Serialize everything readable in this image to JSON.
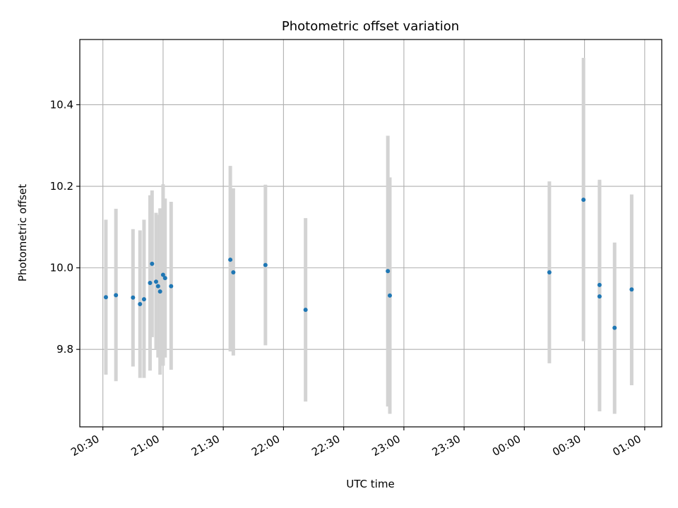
{
  "chart_data": {
    "type": "scatter",
    "title": "Photometric offset variation",
    "xlabel": "UTC time",
    "ylabel": "Photometric offset",
    "x_start": "20:30",
    "x_ticks": [
      "20:30",
      "21:00",
      "21:30",
      "22:00",
      "22:30",
      "23:00",
      "23:30",
      "00:00",
      "00:30",
      "01:00"
    ],
    "y_ticks": [
      9.8,
      10.0,
      10.2,
      10.4
    ],
    "xlim_minutes": [
      -11.5,
      278.5
    ],
    "ylim": [
      9.61,
      10.56
    ],
    "grid": true,
    "point_color": "#1f77b4",
    "errorbar_color": "#d3d3d3",
    "points": [
      {
        "x": 1.5,
        "y": 9.928,
        "ylo": 9.738,
        "yhi": 10.118
      },
      {
        "x": 6.5,
        "y": 9.933,
        "ylo": 9.722,
        "yhi": 10.145
      },
      {
        "x": 15.0,
        "y": 9.927,
        "ylo": 9.758,
        "yhi": 10.095
      },
      {
        "x": 18.5,
        "y": 9.911,
        "ylo": 9.73,
        "yhi": 10.092
      },
      {
        "x": 20.5,
        "y": 9.923,
        "ylo": 9.73,
        "yhi": 10.118
      },
      {
        "x": 23.5,
        "y": 9.963,
        "ylo": 9.748,
        "yhi": 10.178
      },
      {
        "x": 24.5,
        "y": 10.01,
        "ylo": 9.83,
        "yhi": 10.19
      },
      {
        "x": 26.5,
        "y": 9.966,
        "ylo": 9.8,
        "yhi": 10.135
      },
      {
        "x": 27.5,
        "y": 9.955,
        "ylo": 9.78,
        "yhi": 10.13
      },
      {
        "x": 28.5,
        "y": 9.942,
        "ylo": 9.738,
        "yhi": 10.146
      },
      {
        "x": 30.0,
        "y": 9.983,
        "ylo": 9.76,
        "yhi": 10.205
      },
      {
        "x": 31.0,
        "y": 9.975,
        "ylo": 9.78,
        "yhi": 10.17
      },
      {
        "x": 34.0,
        "y": 9.955,
        "ylo": 9.75,
        "yhi": 10.162
      },
      {
        "x": 63.5,
        "y": 10.02,
        "ylo": 9.795,
        "yhi": 10.25
      },
      {
        "x": 65.0,
        "y": 9.989,
        "ylo": 9.785,
        "yhi": 10.195
      },
      {
        "x": 81.0,
        "y": 10.007,
        "ylo": 9.81,
        "yhi": 10.204
      },
      {
        "x": 101.0,
        "y": 9.897,
        "ylo": 9.672,
        "yhi": 10.122
      },
      {
        "x": 142.0,
        "y": 9.992,
        "ylo": 9.66,
        "yhi": 10.324
      },
      {
        "x": 143.0,
        "y": 9.932,
        "ylo": 9.642,
        "yhi": 10.222
      },
      {
        "x": 222.5,
        "y": 9.989,
        "ylo": 9.766,
        "yhi": 10.212
      },
      {
        "x": 239.5,
        "y": 10.167,
        "ylo": 9.82,
        "yhi": 10.515
      },
      {
        "x": 247.5,
        "y": 9.958,
        "ylo": 9.7,
        "yhi": 10.216
      },
      {
        "x": 247.5,
        "y": 9.93,
        "ylo": 9.648,
        "yhi": 10.212
      },
      {
        "x": 255.0,
        "y": 9.853,
        "ylo": 9.642,
        "yhi": 10.062
      },
      {
        "x": 263.5,
        "y": 9.947,
        "ylo": 9.712,
        "yhi": 10.18
      }
    ]
  }
}
